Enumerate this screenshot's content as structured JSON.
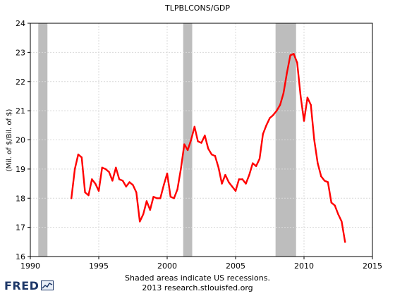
{
  "chart_data": {
    "type": "line",
    "title": "TLPBLCONS/GDP",
    "ylabel": "(Mil. of $/Bil. of $)",
    "xlabel": "",
    "xlim": [
      1990,
      2015
    ],
    "ylim": [
      16,
      24
    ],
    "x_ticks": [
      "1990",
      "1995",
      "2000",
      "2005",
      "2010",
      "2015"
    ],
    "y_ticks": [
      "16",
      "17",
      "18",
      "19",
      "20",
      "21",
      "22",
      "23",
      "24"
    ],
    "grid": true,
    "line_color": "#ff0000",
    "recession_color": "#bdbdbd",
    "recessions": [
      [
        1990.58,
        1991.25
      ],
      [
        2001.17,
        2001.83
      ],
      [
        2007.92,
        2009.42
      ]
    ],
    "series": [
      {
        "x": [
          1993.0,
          1993.25,
          1993.5,
          1993.75,
          1994.0,
          1994.25,
          1994.5,
          1994.75,
          1995.0,
          1995.25,
          1995.5,
          1995.75,
          1996.0,
          1996.25,
          1996.5,
          1996.75,
          1997.0,
          1997.25,
          1997.5,
          1997.75,
          1998.0,
          1998.25,
          1998.5,
          1998.75,
          1999.0,
          1999.25,
          1999.5,
          1999.75,
          2000.0,
          2000.25,
          2000.5,
          2000.75,
          2001.0,
          2001.25,
          2001.5,
          2001.75,
          2002.0,
          2002.25,
          2002.5,
          2002.75,
          2003.0,
          2003.25,
          2003.5,
          2003.75,
          2004.0,
          2004.25,
          2004.5,
          2004.75,
          2005.0,
          2005.25,
          2005.5,
          2005.75,
          2006.0,
          2006.25,
          2006.5,
          2006.75,
          2007.0,
          2007.25,
          2007.5,
          2007.75,
          2008.0,
          2008.25,
          2008.5,
          2008.75,
          2009.0,
          2009.25,
          2009.5,
          2009.75,
          2010.0,
          2010.25,
          2010.5,
          2010.75,
          2011.0,
          2011.25,
          2011.5,
          2011.75,
          2012.0,
          2012.25,
          2012.5,
          2012.75,
          2013.0
        ],
        "values": [
          18.0,
          19.0,
          19.5,
          19.4,
          18.2,
          18.1,
          18.65,
          18.5,
          18.25,
          19.05,
          19.0,
          18.9,
          18.6,
          19.05,
          18.65,
          18.6,
          18.4,
          18.55,
          18.45,
          18.2,
          17.2,
          17.45,
          17.9,
          17.6,
          18.05,
          18.0,
          18.0,
          18.45,
          18.85,
          18.05,
          18.0,
          18.3,
          19.0,
          19.85,
          19.65,
          20.0,
          20.45,
          19.95,
          19.9,
          20.15,
          19.7,
          19.5,
          19.45,
          19.05,
          18.5,
          18.8,
          18.55,
          18.4,
          18.25,
          18.65,
          18.65,
          18.5,
          18.8,
          19.2,
          19.1,
          19.35,
          20.2,
          20.5,
          20.75,
          20.85,
          21.0,
          21.2,
          21.6,
          22.3,
          22.9,
          22.95,
          22.65,
          21.5,
          20.65,
          21.45,
          21.2,
          20.0,
          19.2,
          18.75,
          18.6,
          18.55,
          17.85,
          17.75,
          17.45,
          17.2,
          16.5
        ]
      }
    ]
  },
  "footer": {
    "note_line1": "Shaded areas indicate US recessions.",
    "note_line2": "2013 research.stlouisfed.org",
    "logo_text": "FRED"
  }
}
